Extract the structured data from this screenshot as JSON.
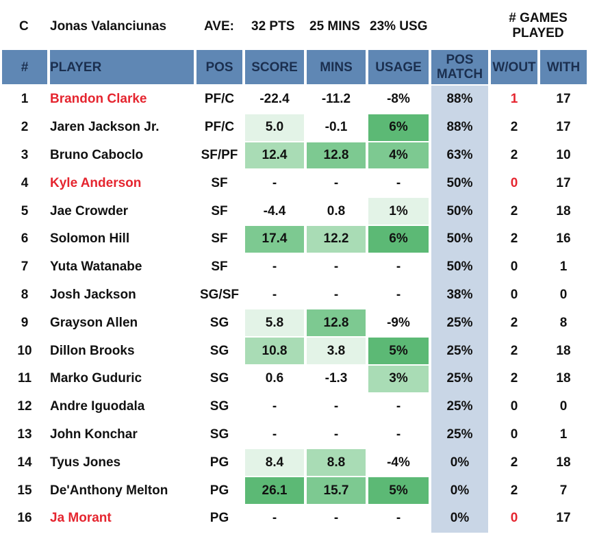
{
  "summary": {
    "position": "C",
    "player": "Jonas Valanciunas",
    "ave_label": "AVE:",
    "pts": "32 PTS",
    "mins": "25 MINS",
    "usg": "23% USG",
    "games_label_1": "# GAMES",
    "games_label_2": "PLAYED"
  },
  "headers": {
    "num": "#",
    "player": "PLAYER",
    "pos": "POS",
    "score": "SCORE",
    "mins": "MINS",
    "usage": "USAGE",
    "match_1": "POS",
    "match_2": "MATCH",
    "wout": "W/OUT",
    "with": "WITH"
  },
  "colors": {
    "header_bg": "#5f87b4",
    "header_text": "#1b2f4f",
    "match_bg": "#c9d6e6",
    "highlight_red": "#e5252f",
    "green_light": "#e3f3e7",
    "green_mid": "#a9dcb5",
    "green_strong": "#7dc991",
    "green_dark": "#5cb975"
  },
  "rows": [
    {
      "num": "1",
      "player": "Brandon Clarke",
      "player_red": true,
      "pos": "PF/C",
      "score": "-22.4",
      "score_shade": "none",
      "mins": "-11.2",
      "mins_shade": "none",
      "usage": "-8%",
      "usage_shade": "none",
      "match": "88%",
      "wout": "1",
      "wout_red": true,
      "with": "17"
    },
    {
      "num": "2",
      "player": "Jaren Jackson Jr.",
      "player_red": false,
      "pos": "PF/C",
      "score": "5.0",
      "score_shade": "light",
      "mins": "-0.1",
      "mins_shade": "none",
      "usage": "6%",
      "usage_shade": "dark",
      "match": "88%",
      "wout": "2",
      "wout_red": false,
      "with": "17"
    },
    {
      "num": "3",
      "player": "Bruno Caboclo",
      "player_red": false,
      "pos": "SF/PF",
      "score": "12.4",
      "score_shade": "mid",
      "mins": "12.8",
      "mins_shade": "strong",
      "usage": "4%",
      "usage_shade": "strong",
      "match": "63%",
      "wout": "2",
      "wout_red": false,
      "with": "10"
    },
    {
      "num": "4",
      "player": "Kyle Anderson",
      "player_red": true,
      "pos": "SF",
      "score": "-",
      "score_shade": "none",
      "mins": "-",
      "mins_shade": "none",
      "usage": "-",
      "usage_shade": "none",
      "match": "50%",
      "wout": "0",
      "wout_red": true,
      "with": "17"
    },
    {
      "num": "5",
      "player": "Jae Crowder",
      "player_red": false,
      "pos": "SF",
      "score": "-4.4",
      "score_shade": "none",
      "mins": "0.8",
      "mins_shade": "none",
      "usage": "1%",
      "usage_shade": "light",
      "match": "50%",
      "wout": "2",
      "wout_red": false,
      "with": "18"
    },
    {
      "num": "6",
      "player": "Solomon Hill",
      "player_red": false,
      "pos": "SF",
      "score": "17.4",
      "score_shade": "strong",
      "mins": "12.2",
      "mins_shade": "mid",
      "usage": "6%",
      "usage_shade": "dark",
      "match": "50%",
      "wout": "2",
      "wout_red": false,
      "with": "16"
    },
    {
      "num": "7",
      "player": "Yuta Watanabe",
      "player_red": false,
      "pos": "SF",
      "score": "-",
      "score_shade": "none",
      "mins": "-",
      "mins_shade": "none",
      "usage": "-",
      "usage_shade": "none",
      "match": "50%",
      "wout": "0",
      "wout_red": false,
      "with": "1"
    },
    {
      "num": "8",
      "player": "Josh Jackson",
      "player_red": false,
      "pos": "SG/SF",
      "score": "-",
      "score_shade": "none",
      "mins": "-",
      "mins_shade": "none",
      "usage": "-",
      "usage_shade": "none",
      "match": "38%",
      "wout": "0",
      "wout_red": false,
      "with": "0"
    },
    {
      "num": "9",
      "player": "Grayson Allen",
      "player_red": false,
      "pos": "SG",
      "score": "5.8",
      "score_shade": "light",
      "mins": "12.8",
      "mins_shade": "strong",
      "usage": "-9%",
      "usage_shade": "none",
      "match": "25%",
      "wout": "2",
      "wout_red": false,
      "with": "8"
    },
    {
      "num": "10",
      "player": "Dillon Brooks",
      "player_red": false,
      "pos": "SG",
      "score": "10.8",
      "score_shade": "mid",
      "mins": "3.8",
      "mins_shade": "light",
      "usage": "5%",
      "usage_shade": "dark",
      "match": "25%",
      "wout": "2",
      "wout_red": false,
      "with": "18"
    },
    {
      "num": "11",
      "player": "Marko Guduric",
      "player_red": false,
      "pos": "SG",
      "score": "0.6",
      "score_shade": "none",
      "mins": "-1.3",
      "mins_shade": "none",
      "usage": "3%",
      "usage_shade": "mid",
      "match": "25%",
      "wout": "2",
      "wout_red": false,
      "with": "18"
    },
    {
      "num": "12",
      "player": "Andre Iguodala",
      "player_red": false,
      "pos": "SG",
      "score": "-",
      "score_shade": "none",
      "mins": "-",
      "mins_shade": "none",
      "usage": "-",
      "usage_shade": "none",
      "match": "25%",
      "wout": "0",
      "wout_red": false,
      "with": "0"
    },
    {
      "num": "13",
      "player": "John Konchar",
      "player_red": false,
      "pos": "SG",
      "score": "-",
      "score_shade": "none",
      "mins": "-",
      "mins_shade": "none",
      "usage": "-",
      "usage_shade": "none",
      "match": "25%",
      "wout": "0",
      "wout_red": false,
      "with": "1"
    },
    {
      "num": "14",
      "player": "Tyus Jones",
      "player_red": false,
      "pos": "PG",
      "score": "8.4",
      "score_shade": "light",
      "mins": "8.8",
      "mins_shade": "mid",
      "usage": "-4%",
      "usage_shade": "none",
      "match": "0%",
      "wout": "2",
      "wout_red": false,
      "with": "18"
    },
    {
      "num": "15",
      "player": "De'Anthony Melton",
      "player_red": false,
      "pos": "PG",
      "score": "26.1",
      "score_shade": "dark",
      "mins": "15.7",
      "mins_shade": "strong",
      "usage": "5%",
      "usage_shade": "dark",
      "match": "0%",
      "wout": "2",
      "wout_red": false,
      "with": "7"
    },
    {
      "num": "16",
      "player": "Ja Morant",
      "player_red": true,
      "pos": "PG",
      "score": "-",
      "score_shade": "none",
      "mins": "-",
      "mins_shade": "none",
      "usage": "-",
      "usage_shade": "none",
      "match": "0%",
      "wout": "0",
      "wout_red": true,
      "with": "17"
    }
  ]
}
